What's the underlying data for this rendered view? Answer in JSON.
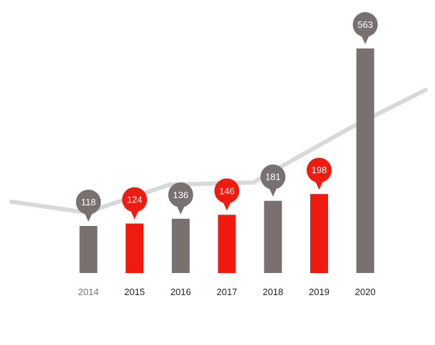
{
  "chart_data": {
    "type": "bar",
    "categories": [
      "2014",
      "2015",
      "2016",
      "2017",
      "2018",
      "2019",
      "2020"
    ],
    "values": [
      118,
      124,
      136,
      146,
      181,
      198,
      563
    ],
    "data_labels": [
      "118",
      "124",
      "136",
      "146",
      "181",
      "198",
      "563"
    ],
    "highlighted": [
      false,
      true,
      false,
      true,
      false,
      true,
      false
    ],
    "ylim": [
      0,
      563
    ],
    "trend_line": {
      "type": "line",
      "description_color": "#d8d8d8"
    },
    "grid": false,
    "legend": "none"
  },
  "colors": {
    "bar_default": "#787170",
    "bar_highlight": "#ef1b10",
    "trend_line": "#d9d9d9",
    "tick_default": "#555555",
    "tick_first": "#777777",
    "pin_text": "#ffffff"
  }
}
